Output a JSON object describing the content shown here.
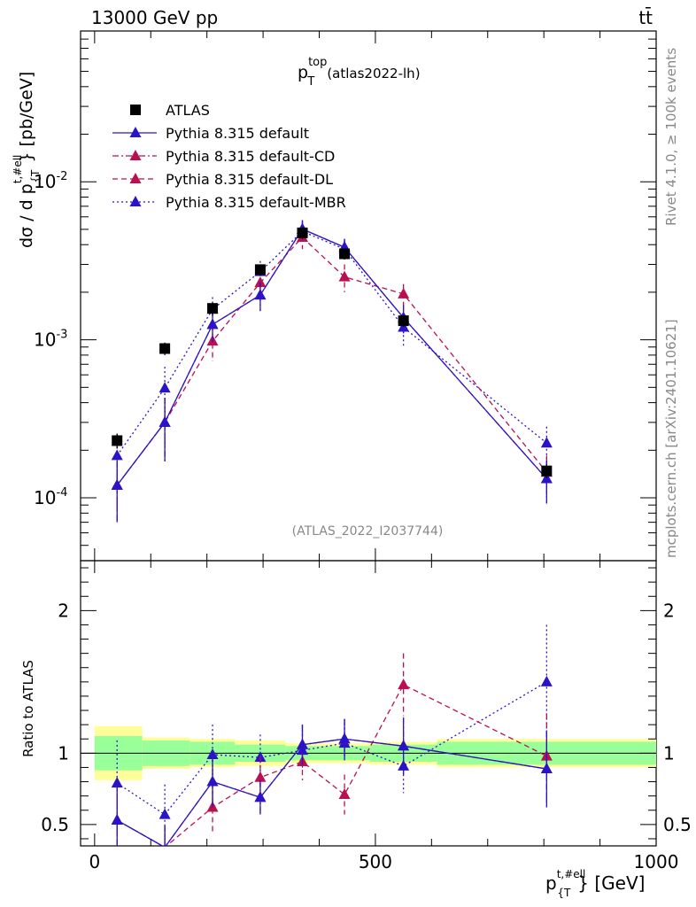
{
  "header": {
    "energy_label": "13000 GeV pp",
    "process_label": "tt̄"
  },
  "side_labels": {
    "rivet": "Rivet 4.1.0, ≥ 100k events",
    "source": "mcplots.cern.ch [arXiv:2401.10621]"
  },
  "chart_data": {
    "type": "line",
    "title_main": "p",
    "title_sup": "top",
    "title_sub": "T",
    "title_note": "(atlas2022-lh)",
    "analysis_id": "(ATLAS_2022_I2037744)",
    "ylabel_main": "dσ / d p",
    "ylabel_sup": "t,#ell",
    "ylabel_sub": "{T",
    "ylabel_tail": "} [pb/GeV]",
    "xlabel_main": "p",
    "xlabel_sup": "t,#ell",
    "xlabel_sub": "{T",
    "xlabel_tail": "} [GeV]",
    "ratio_ylabel": "Ratio to ATLAS",
    "xlim": [
      -25,
      1000
    ],
    "ylim": [
      4e-05,
      0.09
    ],
    "ratio_ylim": [
      0.35,
      2.35
    ],
    "x_ticks": [
      "0",
      "500",
      "1000"
    ],
    "y_tick_labels": [
      "10^-4",
      "10^-3",
      "10^-2"
    ],
    "ratio_tick_labels": [
      "0.5",
      "1",
      "2"
    ],
    "x": [
      40,
      125,
      210,
      295,
      370,
      445,
      550,
      805
    ],
    "bin_edges": [
      0,
      85,
      170,
      250,
      340,
      400,
      490,
      610,
      1000
    ],
    "band_inner": [
      0.12,
      0.09,
      0.08,
      0.06,
      0.05,
      0.05,
      0.06,
      0.08
    ],
    "band_outer": [
      0.19,
      0.11,
      0.1,
      0.09,
      0.07,
      0.07,
      0.08,
      0.1
    ],
    "series": [
      {
        "name": "ATLAS",
        "marker": "square",
        "color": "#000000",
        "line": "none",
        "values": [
          0.00023,
          0.00088,
          0.00158,
          0.00278,
          0.00475,
          0.0035,
          0.00132,
          0.000148
        ],
        "errors": [
          2.4e-05,
          8e-05,
          0.00014,
          0.00022,
          0.00038,
          0.00028,
          0.00011,
          1.5e-05
        ]
      },
      {
        "name": "Pythia 8.315 default",
        "marker": "triangle",
        "color": "#2a14c8",
        "line": "solid",
        "values": [
          0.00012,
          0.0003,
          0.00125,
          0.00192,
          0.00502,
          0.00385,
          0.00138,
          0.000132
        ],
        "errors": [
          5e-05,
          0.00013,
          0.00028,
          0.0004,
          0.0007,
          0.0005,
          0.00028,
          4e-05
        ]
      },
      {
        "name": "Pythia 8.315 default-CD",
        "marker": "triangle",
        "color": "#b81050",
        "line": "dashdot",
        "values": [
          0.00012,
          0.0003,
          0.00125,
          0.00192,
          0.00502,
          0.00385,
          0.00138,
          0.000132
        ],
        "errors": [
          5e-05,
          0.00013,
          0.00028,
          0.0004,
          0.0007,
          0.0005,
          0.00028,
          4e-05
        ]
      },
      {
        "name": "Pythia 8.315 default-DL",
        "marker": "triangle",
        "color": "#b81050",
        "line": "dashed",
        "values": [
          0.00012,
          0.0003,
          0.00098,
          0.0023,
          0.00445,
          0.0025,
          0.00195,
          0.000145
        ],
        "errors": [
          5e-05,
          0.00013,
          0.00025,
          0.00045,
          0.0007,
          0.0005,
          0.0003,
          4e-05
        ]
      },
      {
        "name": "Pythia 8.315 default-MBR",
        "marker": "triangle",
        "color": "#2a14c8",
        "line": "dotted",
        "values": [
          0.000185,
          0.000495,
          0.00156,
          0.0027,
          0.00485,
          0.00375,
          0.0012,
          0.000222
        ],
        "errors": [
          7e-05,
          0.00018,
          0.0003,
          0.00045,
          0.0007,
          0.0005,
          0.00028,
          6e-05
        ]
      }
    ],
    "ratio_series": [
      {
        "name": "Pythia 8.315 default",
        "values": [
          0.53,
          0.34,
          0.8,
          0.69,
          1.06,
          1.1,
          1.05,
          0.89
        ],
        "errors": [
          0.24,
          0.15,
          0.18,
          0.12,
          0.14,
          0.14,
          0.2,
          0.27
        ]
      },
      {
        "name": "Pythia 8.315 default-CD",
        "values": [
          0.53,
          0.34,
          0.8,
          0.69,
          1.06,
          1.1,
          1.05,
          0.89
        ],
        "errors": [
          0.24,
          0.15,
          0.18,
          0.12,
          0.14,
          0.14,
          0.2,
          0.27
        ]
      },
      {
        "name": "Pythia 8.315 default-DL",
        "values": [
          0.53,
          0.34,
          0.62,
          0.83,
          0.94,
          0.71,
          1.48,
          0.98
        ],
        "errors": [
          0.24,
          0.15,
          0.18,
          0.15,
          0.13,
          0.14,
          0.22,
          0.3
        ]
      },
      {
        "name": "Pythia 8.315 default-MBR",
        "values": [
          0.79,
          0.57,
          0.99,
          0.97,
          1.02,
          1.07,
          0.91,
          1.5
        ],
        "errors": [
          0.3,
          0.21,
          0.21,
          0.16,
          0.14,
          0.14,
          0.19,
          0.4
        ]
      }
    ]
  }
}
